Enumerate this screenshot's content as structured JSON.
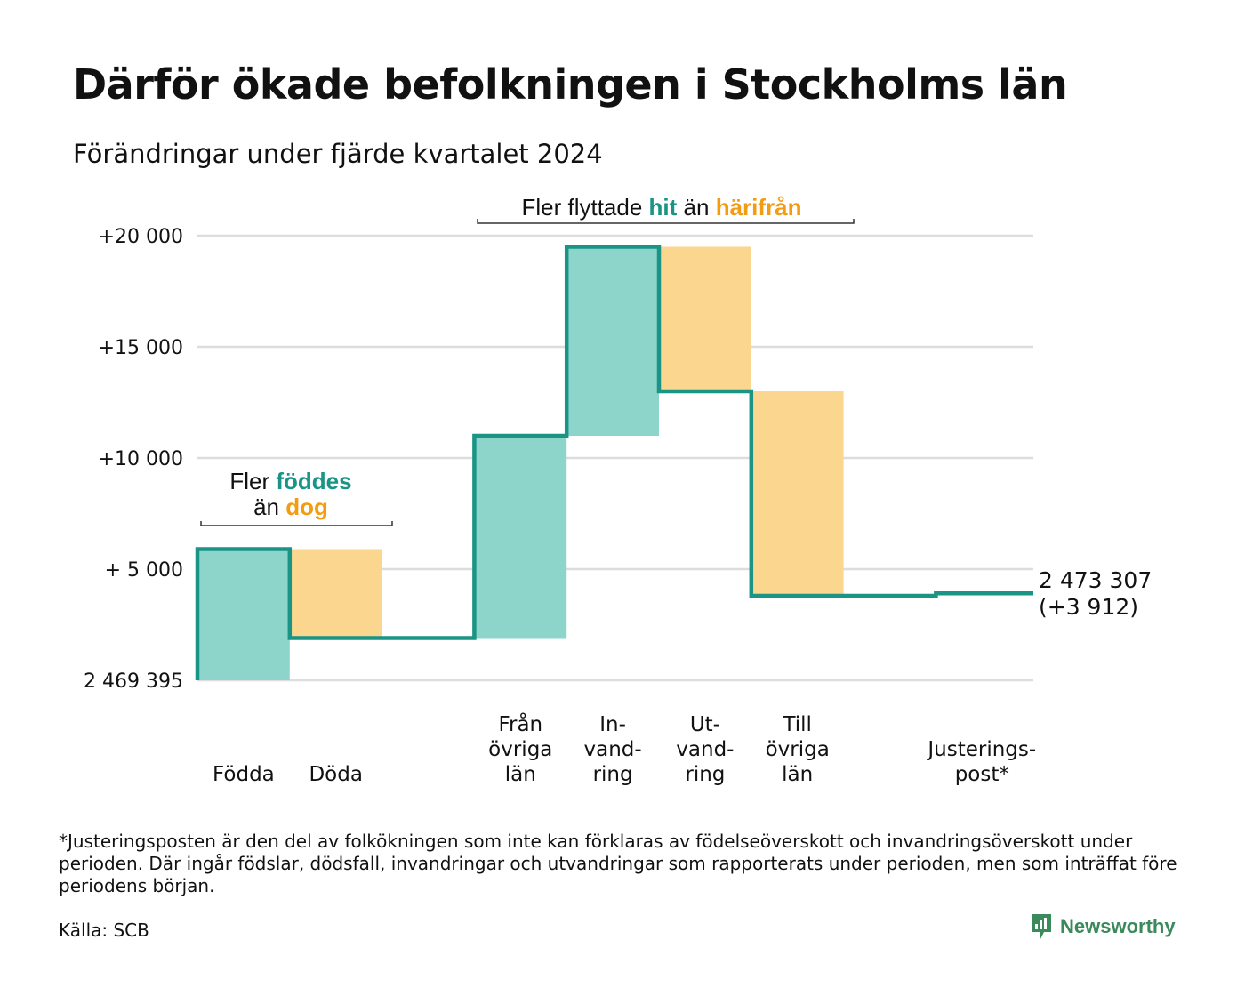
{
  "header": {
    "title": "Därför ökade befolkningen i Stockholms län",
    "subtitle": "Förändringar under fjärde kvartalet 2024"
  },
  "colors": {
    "increase_fill": "#8dd5cb",
    "decrease_fill": "#fad68e",
    "line": "#1a9485",
    "accent_teal": "#1a9485",
    "accent_orange": "#f39c12",
    "grid": "#dddddd"
  },
  "chart_data": {
    "type": "waterfall",
    "baseline_label": "2 469 395",
    "y_tick_labels": [
      "2 469 395",
      "+ 5 000",
      "+10 000",
      "+15 000",
      "+20 000"
    ],
    "y_tick_values": [
      0,
      5000,
      10000,
      15000,
      20000
    ],
    "ylim": [
      0,
      20000
    ],
    "steps": [
      {
        "label_lines": [
          "Födda"
        ],
        "change": 5900,
        "kind": "increase"
      },
      {
        "label_lines": [
          "Döda"
        ],
        "change": -4000,
        "kind": "decrease"
      },
      {
        "label_lines": [
          ""
        ],
        "change": 0,
        "kind": "none"
      },
      {
        "label_lines": [
          "Från",
          "övriga",
          "län"
        ],
        "change": 9100,
        "kind": "increase"
      },
      {
        "label_lines": [
          "In-",
          "vand-",
          "ring"
        ],
        "change": 8500,
        "kind": "increase"
      },
      {
        "label_lines": [
          "Ut-",
          "vand-",
          "ring"
        ],
        "change": -6500,
        "kind": "decrease"
      },
      {
        "label_lines": [
          "Till",
          "övriga",
          "län"
        ],
        "change": -9200,
        "kind": "decrease"
      },
      {
        "label_lines": [
          ""
        ],
        "change": 0,
        "kind": "none"
      },
      {
        "label_lines": [
          "Justerings-",
          "post*"
        ],
        "change": 112,
        "kind": "adjustment"
      }
    ],
    "end_value_label": "2 473 307",
    "end_change_label": "(+3 912)",
    "annotations": [
      {
        "lines": [
          [
            {
              "text": "Fler ",
              "style": "plain"
            },
            {
              "text": "föddes",
              "style": "teal"
            }
          ],
          [
            {
              "text": "än ",
              "style": "plain"
            },
            {
              "text": "dog",
              "style": "orange"
            }
          ]
        ]
      },
      {
        "lines": [
          [
            {
              "text": "Fler flyttade ",
              "style": "plain"
            },
            {
              "text": "hit",
              "style": "teal"
            },
            {
              "text": " än ",
              "style": "plain"
            },
            {
              "text": "härifrån",
              "style": "orange"
            }
          ]
        ]
      }
    ]
  },
  "footnote": "*Justeringsposten är den del av folkökningen som inte kan förklaras av födelseöverskott och invandringsöverskott under perioden. Där ingår födslar, dödsfall, invandringar och utvandringar som rapporterats under perioden, men som inträffat före periodens början.",
  "source": "Källa: SCB",
  "brand": {
    "name": "Newsworthy",
    "icon": "newsworthy-logo-icon"
  }
}
